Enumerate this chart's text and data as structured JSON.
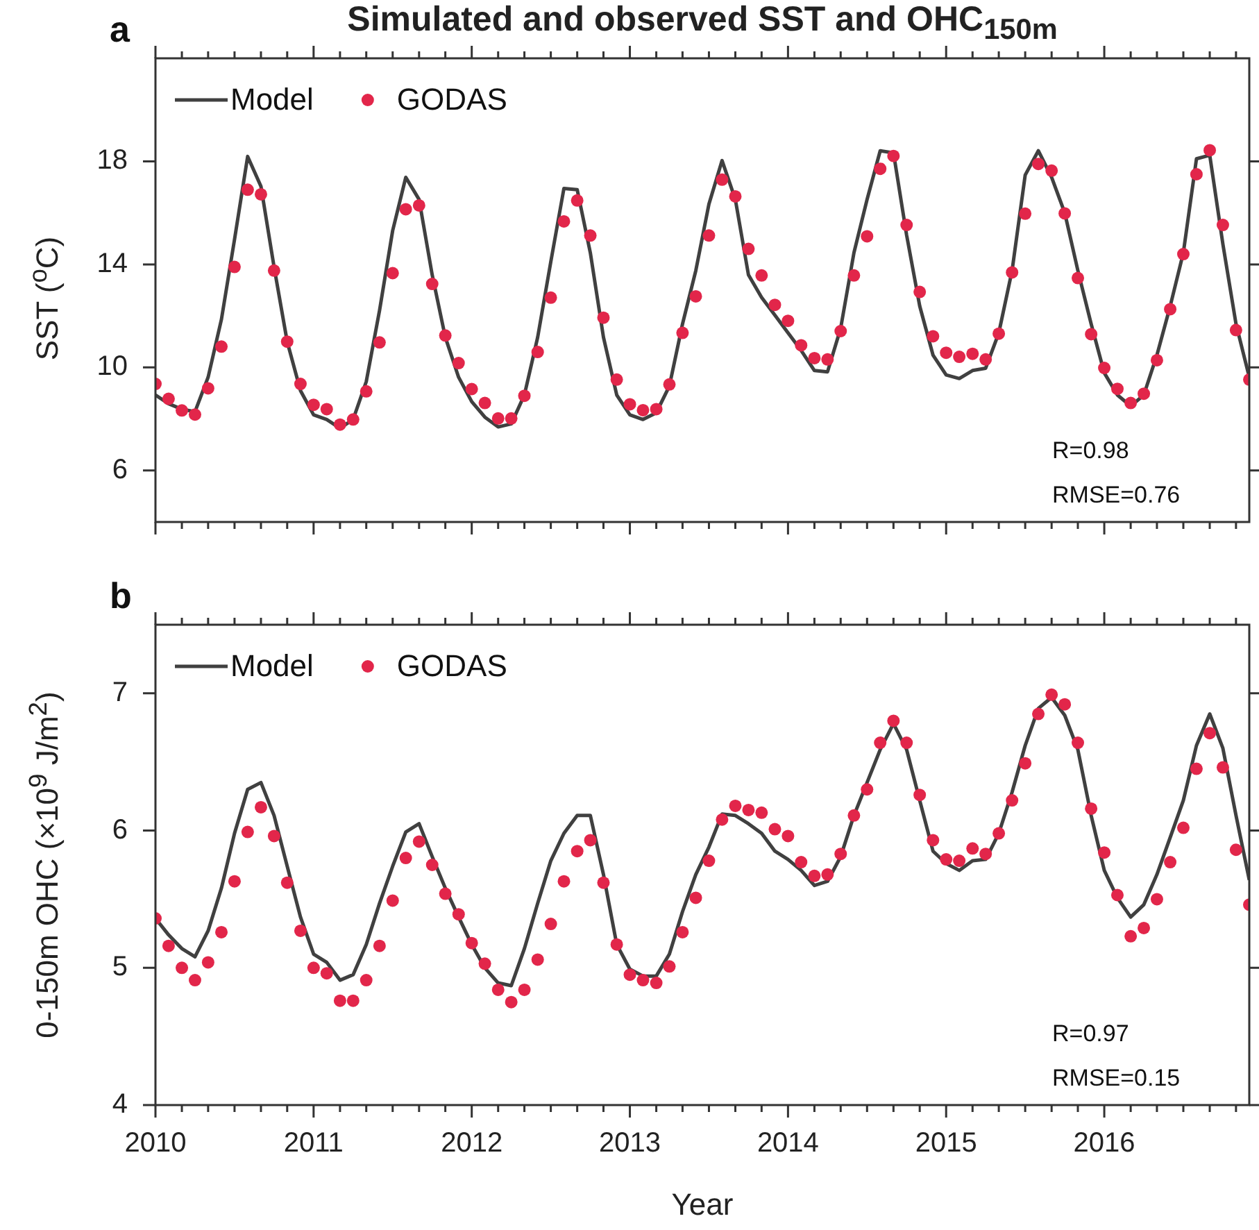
{
  "chart_data": [
    {
      "type": "line",
      "title": "Simulated and observed SST and OHC$_{150m}$",
      "ylabel": "SST ($^{o}$C)",
      "annotations": [
        "a",
        "R=0.98",
        "RMSE=0.76"
      ],
      "x": [
        2010,
        2010.083,
        2010.167,
        2010.25,
        2010.333,
        2010.417,
        2010.5,
        2010.583,
        2010.667,
        2010.75,
        2010.833,
        2010.917,
        2011,
        2011.083,
        2011.167,
        2011.25,
        2011.333,
        2011.417,
        2011.5,
        2011.583,
        2011.667,
        2011.75,
        2011.833,
        2011.917,
        2012,
        2012.083,
        2012.167,
        2012.25,
        2012.333,
        2012.417,
        2012.5,
        2012.583,
        2012.667,
        2012.75,
        2012.833,
        2012.917,
        2013,
        2013.083,
        2013.167,
        2013.25,
        2013.333,
        2013.417,
        2013.5,
        2013.583,
        2013.667,
        2013.75,
        2013.833,
        2013.917,
        2014,
        2014.083,
        2014.167,
        2014.25,
        2014.333,
        2014.417,
        2014.5,
        2014.583,
        2014.667,
        2014.75,
        2014.833,
        2014.917,
        2015,
        2015.083,
        2015.167,
        2015.25,
        2015.333,
        2015.417,
        2015.5,
        2015.583,
        2015.667,
        2015.75,
        2015.833,
        2015.917,
        2016,
        2016.083,
        2016.167,
        2016.25,
        2016.333,
        2016.417,
        2016.5,
        2016.583,
        2016.667,
        2016.75,
        2016.833,
        2016.917
      ],
      "series": [
        {
          "name": "Model",
          "type": "line",
          "color": "#404040",
          "marker": "none",
          "values": [
            8.93,
            8.59,
            8.38,
            8.28,
            9.62,
            11.86,
            14.97,
            18.19,
            17.03,
            13.9,
            11.0,
            9.1,
            8.16,
            7.98,
            7.64,
            7.98,
            9.45,
            12.21,
            15.31,
            17.38,
            16.52,
            13.59,
            11.17,
            9.62,
            8.67,
            8.07,
            7.69,
            7.81,
            8.93,
            11.17,
            14.1,
            16.95,
            16.9,
            14.45,
            11.17,
            8.93,
            8.16,
            7.98,
            8.24,
            9.28,
            11.69,
            13.76,
            16.34,
            18.03,
            16.52,
            13.59,
            12.72,
            12.03,
            11.34,
            10.66,
            9.88,
            9.83,
            11.52,
            14.45,
            16.52,
            18.41,
            18.33,
            15.14,
            12.38,
            10.48,
            9.71,
            9.57,
            9.88,
            9.97,
            11.34,
            13.76,
            17.47,
            18.41,
            17.38,
            16.0,
            13.76,
            11.69,
            9.79,
            8.93,
            8.5,
            8.93,
            10.48,
            12.38,
            14.45,
            18.1,
            18.24,
            14.79,
            11.69,
            9.62
          ]
        },
        {
          "name": "GODAS",
          "type": "scatter",
          "color": "#e2264a",
          "marker": "circle",
          "values": [
            9.36,
            8.78,
            8.33,
            8.17,
            9.19,
            10.81,
            13.9,
            16.9,
            16.72,
            13.76,
            11.0,
            9.36,
            8.55,
            8.38,
            7.78,
            7.98,
            9.07,
            10.97,
            13.66,
            16.14,
            16.29,
            13.24,
            11.24,
            10.17,
            9.16,
            8.62,
            8.02,
            8.02,
            8.9,
            10.6,
            12.71,
            15.67,
            16.48,
            15.12,
            11.93,
            9.53,
            8.57,
            8.34,
            8.38,
            9.34,
            11.34,
            12.76,
            15.12,
            17.29,
            16.64,
            14.6,
            13.57,
            12.43,
            11.81,
            10.86,
            10.36,
            10.31,
            11.41,
            13.57,
            15.09,
            17.71,
            18.21,
            15.53,
            12.93,
            11.21,
            10.57,
            10.41,
            10.53,
            10.31,
            11.31,
            13.69,
            15.97,
            17.9,
            17.64,
            15.98,
            13.47,
            11.29,
            9.98,
            9.17,
            8.62,
            8.98,
            10.28,
            12.26,
            14.4,
            17.5,
            18.43,
            15.53,
            11.45,
            9.53
          ]
        }
      ],
      "xlim": [
        2010,
        2016.917
      ],
      "xticks": [
        2010,
        {
          "value": 2010.167,
          "label": null
        },
        {
          "value": 2010.333,
          "label": null
        },
        {
          "value": 2010.5,
          "label": null
        },
        {
          "value": 2010.667,
          "label": null
        },
        {
          "value": 2010.833,
          "label": null
        },
        2011,
        {
          "value": 2011.167,
          "label": null
        },
        {
          "value": 2011.333,
          "label": null
        },
        {
          "value": 2011.5,
          "label": null
        },
        {
          "value": 2011.667,
          "label": null
        },
        {
          "value": 2011.833,
          "label": null
        },
        2012,
        {
          "value": 2012.167,
          "label": null
        },
        {
          "value": 2012.333,
          "label": null
        },
        {
          "value": 2012.5,
          "label": null
        },
        {
          "value": 2012.667,
          "label": null
        },
        {
          "value": 2012.833,
          "label": null
        },
        2013,
        {
          "value": 2013.167,
          "label": null
        },
        {
          "value": 2013.333,
          "label": null
        },
        {
          "value": 2013.5,
          "label": null
        },
        {
          "value": 2013.667,
          "label": null
        },
        {
          "value": 2013.833,
          "label": null
        },
        2014,
        {
          "value": 2014.167,
          "label": null
        },
        {
          "value": 2014.333,
          "label": null
        },
        {
          "value": 2014.5,
          "label": null
        },
        {
          "value": 2014.667,
          "label": null
        },
        {
          "value": 2014.833,
          "label": null
        },
        2015,
        {
          "value": 2015.167,
          "label": null
        },
        {
          "value": 2015.333,
          "label": null
        },
        {
          "value": 2015.5,
          "label": null
        },
        {
          "value": 2015.667,
          "label": null
        },
        {
          "value": 2015.833,
          "label": null
        },
        2016,
        {
          "value": 2016.167,
          "label": null
        },
        {
          "value": 2016.333,
          "label": null
        },
        {
          "value": 2016.5,
          "label": null
        },
        {
          "value": 2016.667,
          "label": null
        },
        {
          "value": 2016.833,
          "label": null
        }
      ],
      "ylim": [
        4,
        22
      ],
      "yticks": [
        6,
        10,
        14,
        18
      ],
      "tick_labels": "y",
      "legend": "top left"
    },
    {
      "type": "line",
      "xlabel": "Year",
      "ylabel": "0-150m OHC (×10$^{9}$ J/m$^{2}$)",
      "annotations": [
        "b",
        "R=0.97",
        "RMSE=0.15"
      ],
      "x": [
        2010,
        2010.083,
        2010.167,
        2010.25,
        2010.333,
        2010.417,
        2010.5,
        2010.583,
        2010.667,
        2010.75,
        2010.833,
        2010.917,
        2011,
        2011.083,
        2011.167,
        2011.25,
        2011.333,
        2011.417,
        2011.5,
        2011.583,
        2011.667,
        2011.75,
        2011.833,
        2011.917,
        2012,
        2012.083,
        2012.167,
        2012.25,
        2012.333,
        2012.417,
        2012.5,
        2012.583,
        2012.667,
        2012.75,
        2012.833,
        2012.917,
        2013,
        2013.083,
        2013.167,
        2013.25,
        2013.333,
        2013.417,
        2013.5,
        2013.583,
        2013.667,
        2013.75,
        2013.833,
        2013.917,
        2014,
        2014.083,
        2014.167,
        2014.25,
        2014.333,
        2014.417,
        2014.5,
        2014.583,
        2014.667,
        2014.75,
        2014.833,
        2014.917,
        2015,
        2015.083,
        2015.167,
        2015.25,
        2015.333,
        2015.417,
        2015.5,
        2015.583,
        2015.667,
        2015.75,
        2015.833,
        2015.917,
        2016,
        2016.083,
        2016.167,
        2016.25,
        2016.333,
        2016.417,
        2016.5,
        2016.583,
        2016.667,
        2016.75,
        2016.833,
        2016.917
      ],
      "series": [
        {
          "name": "Model",
          "type": "line",
          "color": "#404040",
          "marker": "none",
          "values": [
            5.36,
            5.24,
            5.14,
            5.08,
            5.27,
            5.58,
            5.98,
            6.3,
            6.35,
            6.11,
            5.74,
            5.37,
            5.1,
            5.04,
            4.91,
            4.95,
            5.17,
            5.47,
            5.74,
            5.99,
            6.05,
            5.81,
            5.58,
            5.37,
            5.17,
            5.0,
            4.89,
            4.87,
            5.14,
            5.47,
            5.78,
            5.98,
            6.11,
            6.11,
            5.68,
            5.17,
            4.99,
            4.94,
            4.94,
            5.1,
            5.41,
            5.68,
            5.88,
            6.12,
            6.11,
            6.05,
            5.98,
            5.85,
            5.79,
            5.71,
            5.6,
            5.63,
            5.81,
            6.11,
            6.35,
            6.59,
            6.78,
            6.59,
            6.22,
            5.85,
            5.76,
            5.71,
            5.78,
            5.79,
            5.98,
            6.28,
            6.62,
            6.89,
            6.97,
            6.84,
            6.59,
            6.11,
            5.71,
            5.51,
            5.37,
            5.46,
            5.68,
            5.95,
            6.22,
            6.62,
            6.85,
            6.6,
            6.11,
            5.64
          ]
        },
        {
          "name": "GODAS",
          "type": "scatter",
          "color": "#e2264a",
          "marker": "circle",
          "values": [
            5.36,
            5.16,
            5.0,
            4.91,
            5.04,
            5.26,
            5.63,
            5.99,
            6.17,
            5.96,
            5.62,
            5.27,
            5.0,
            4.96,
            4.76,
            4.76,
            4.91,
            5.16,
            5.49,
            5.8,
            5.92,
            5.75,
            5.54,
            5.39,
            5.18,
            5.03,
            4.84,
            4.75,
            4.84,
            5.06,
            5.32,
            5.63,
            5.85,
            5.93,
            5.62,
            5.17,
            4.95,
            4.91,
            4.89,
            5.01,
            5.26,
            5.51,
            5.78,
            6.08,
            6.18,
            6.15,
            6.13,
            6.01,
            5.96,
            5.77,
            5.67,
            5.68,
            5.83,
            6.11,
            6.3,
            6.64,
            6.8,
            6.64,
            6.26,
            5.93,
            5.79,
            5.78,
            5.87,
            5.83,
            5.98,
            6.22,
            6.49,
            6.85,
            6.99,
            6.92,
            6.64,
            6.16,
            5.84,
            5.53,
            5.23,
            5.29,
            5.5,
            5.77,
            6.02,
            6.45,
            6.71,
            6.46,
            5.86,
            5.46
          ]
        }
      ],
      "xlim": [
        2010,
        2016.917
      ],
      "xticks": [
        2010,
        {
          "value": 2010.167,
          "label": null
        },
        {
          "value": 2010.333,
          "label": null
        },
        {
          "value": 2010.5,
          "label": null
        },
        {
          "value": 2010.667,
          "label": null
        },
        {
          "value": 2010.833,
          "label": null
        },
        2011,
        {
          "value": 2011.167,
          "label": null
        },
        {
          "value": 2011.333,
          "label": null
        },
        {
          "value": 2011.5,
          "label": null
        },
        {
          "value": 2011.667,
          "label": null
        },
        {
          "value": 2011.833,
          "label": null
        },
        2012,
        {
          "value": 2012.167,
          "label": null
        },
        {
          "value": 2012.333,
          "label": null
        },
        {
          "value": 2012.5,
          "label": null
        },
        {
          "value": 2012.667,
          "label": null
        },
        {
          "value": 2012.833,
          "label": null
        },
        2013,
        {
          "value": 2013.167,
          "label": null
        },
        {
          "value": 2013.333,
          "label": null
        },
        {
          "value": 2013.5,
          "label": null
        },
        {
          "value": 2013.667,
          "label": null
        },
        {
          "value": 2013.833,
          "label": null
        },
        2014,
        {
          "value": 2014.167,
          "label": null
        },
        {
          "value": 2014.333,
          "label": null
        },
        {
          "value": 2014.5,
          "label": null
        },
        {
          "value": 2014.667,
          "label": null
        },
        {
          "value": 2014.833,
          "label": null
        },
        2015,
        {
          "value": 2015.167,
          "label": null
        },
        {
          "value": 2015.333,
          "label": null
        },
        {
          "value": 2015.5,
          "label": null
        },
        {
          "value": 2015.667,
          "label": null
        },
        {
          "value": 2015.833,
          "label": null
        },
        2016,
        {
          "value": 2016.167,
          "label": null
        },
        {
          "value": 2016.333,
          "label": null
        },
        {
          "value": 2016.5,
          "label": null
        },
        {
          "value": 2016.667,
          "label": null
        },
        {
          "value": 2016.833,
          "label": null
        }
      ],
      "ylim": [
        4,
        7.5
      ],
      "yticks": [
        4,
        5,
        6,
        7
      ],
      "legend": "top left"
    }
  ]
}
